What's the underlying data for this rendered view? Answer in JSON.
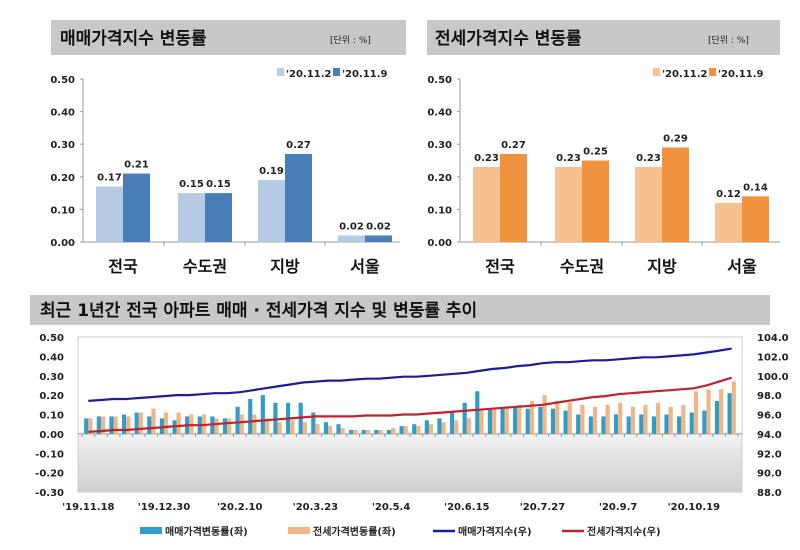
{
  "chart_data": [
    {
      "type": "bar",
      "title": "매매가격지수 변동률",
      "unit": "[단위 : %]",
      "categories": [
        "전국",
        "수도권",
        "지방",
        "서울"
      ],
      "series": [
        {
          "name": "'20.11.2",
          "values": [
            0.17,
            0.15,
            0.19,
            0.02
          ],
          "color": "#b7cbe6"
        },
        {
          "name": "'20.11.9",
          "values": [
            0.21,
            0.15,
            0.27,
            0.02
          ],
          "color": "#4a7ebb"
        }
      ],
      "ylim": [
        0,
        0.5
      ],
      "yticks": [
        "0.00",
        "0.10",
        "0.20",
        "0.30",
        "0.40",
        "0.50"
      ],
      "legend": "top-right",
      "grid": false
    },
    {
      "type": "bar",
      "title": "전세가격지수 변동률",
      "unit": "[단위 : %]",
      "categories": [
        "전국",
        "수도권",
        "지방",
        "서울"
      ],
      "series": [
        {
          "name": "'20.11.2",
          "values": [
            0.23,
            0.23,
            0.23,
            0.12
          ],
          "color": "#f9c08f"
        },
        {
          "name": "'20.11.9",
          "values": [
            0.27,
            0.25,
            0.29,
            0.14
          ],
          "color": "#f0923e"
        }
      ],
      "ylim": [
        0,
        0.5
      ],
      "yticks": [
        "0.00",
        "0.10",
        "0.20",
        "0.30",
        "0.40",
        "0.50"
      ],
      "legend": "top-right",
      "grid": false
    },
    {
      "type": "bar+line",
      "title": "최근 1년간 전국 아파트 매매 · 전세가격 지수 및 변동률 추이",
      "xtick_labels": [
        "'19.11.18",
        "'19.12.30",
        "'20.2.10",
        "'20.3.23",
        "'20.5.4",
        "'20.6.15",
        "'20.7.27",
        "'20.9.7",
        "'20.10.19"
      ],
      "x_weeks": 52,
      "ylim_left": [
        -0.3,
        0.5
      ],
      "yticks_left": [
        "0.50",
        "0.40",
        "0.30",
        "0.20",
        "0.10",
        "0.00",
        "-0.10",
        "-0.20",
        "-0.30"
      ],
      "ylim_right": [
        88.0,
        104.0
      ],
      "yticks_right": [
        "104.0",
        "102.0",
        "100.0",
        "98.0",
        "96.0",
        "94.0",
        "92.0",
        "90.0",
        "88.0"
      ],
      "legend": "bottom",
      "series": [
        {
          "name": "매매가격변동률(좌)",
          "type": "bar",
          "axis": "left",
          "color": "#2f9cc9",
          "values": [
            0.08,
            0.09,
            0.09,
            0.1,
            0.11,
            0.09,
            0.08,
            0.07,
            0.09,
            0.09,
            0.09,
            0.08,
            0.14,
            0.18,
            0.2,
            0.16,
            0.16,
            0.16,
            0.11,
            0.06,
            0.05,
            0.02,
            0.02,
            0.02,
            0.02,
            0.04,
            0.05,
            0.07,
            0.08,
            0.11,
            0.16,
            0.22,
            0.13,
            0.13,
            0.14,
            0.13,
            0.14,
            0.13,
            0.12,
            0.1,
            0.09,
            0.09,
            0.1,
            0.09,
            0.1,
            0.09,
            0.1,
            0.09,
            0.11,
            0.12,
            0.17,
            0.21
          ]
        },
        {
          "name": "전세가격변동률(좌)",
          "type": "bar",
          "axis": "left",
          "color": "#f0b685",
          "values": [
            0.08,
            0.09,
            0.09,
            0.09,
            0.11,
            0.13,
            0.11,
            0.11,
            0.1,
            0.1,
            0.08,
            0.08,
            0.1,
            0.1,
            0.08,
            0.06,
            0.07,
            0.06,
            0.05,
            0.04,
            0.03,
            0.02,
            0.02,
            0.02,
            0.03,
            0.04,
            0.04,
            0.05,
            0.06,
            0.07,
            0.08,
            0.12,
            0.13,
            0.14,
            0.15,
            0.17,
            0.2,
            0.17,
            0.16,
            0.15,
            0.14,
            0.15,
            0.16,
            0.14,
            0.15,
            0.16,
            0.14,
            0.15,
            0.22,
            0.23,
            0.23,
            0.27
          ]
        },
        {
          "name": "매매가격지수(우)",
          "type": "line",
          "axis": "right",
          "color": "#1c1c9c",
          "values": [
            97.4,
            97.5,
            97.6,
            97.6,
            97.7,
            97.8,
            97.9,
            98.0,
            98.0,
            98.1,
            98.2,
            98.2,
            98.3,
            98.5,
            98.7,
            98.9,
            99.1,
            99.3,
            99.4,
            99.5,
            99.5,
            99.6,
            99.7,
            99.7,
            99.8,
            99.9,
            99.9,
            100.0,
            100.1,
            100.2,
            100.3,
            100.5,
            100.7,
            100.8,
            101.0,
            101.1,
            101.3,
            101.4,
            101.4,
            101.5,
            101.6,
            101.6,
            101.7,
            101.8,
            101.9,
            101.9,
            102.0,
            102.1,
            102.2,
            102.4,
            102.6,
            102.8
          ]
        },
        {
          "name": "전세가격지수(우)",
          "type": "line",
          "axis": "right",
          "color": "#c0232b",
          "values": [
            94.2,
            94.3,
            94.4,
            94.4,
            94.5,
            94.6,
            94.7,
            94.8,
            94.9,
            94.9,
            95.0,
            95.1,
            95.2,
            95.3,
            95.4,
            95.5,
            95.6,
            95.7,
            95.8,
            95.8,
            95.8,
            95.8,
            95.9,
            95.9,
            95.9,
            96.0,
            96.0,
            96.1,
            96.2,
            96.3,
            96.4,
            96.5,
            96.6,
            96.7,
            96.8,
            96.9,
            97.0,
            97.2,
            97.4,
            97.6,
            97.8,
            97.9,
            98.1,
            98.2,
            98.3,
            98.4,
            98.5,
            98.6,
            98.7,
            99.0,
            99.4,
            99.8
          ]
        }
      ]
    }
  ]
}
